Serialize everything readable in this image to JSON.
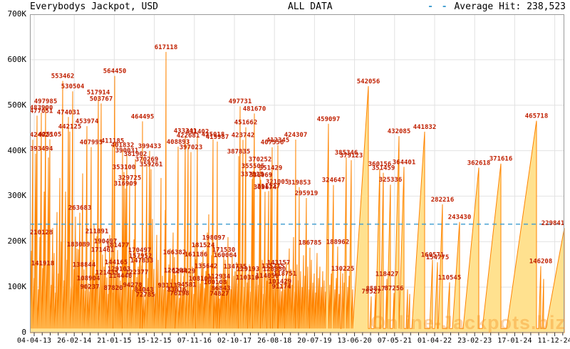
{
  "header": {
    "title": "Everybodys Jackpot, USD",
    "mode": "ALL DATA",
    "legend_dash": "- -",
    "average_label": "Average Hit: 238,523"
  },
  "watermark": "Online-Jackpots.biz",
  "colors": {
    "spike": "#ff8400",
    "fill": "#ffe18f",
    "label": "#c02000",
    "average_line": "#3e9cd0",
    "grid": "#e2e2e2",
    "border": "#9a9a9a",
    "tick": "#333333"
  },
  "chart_data": {
    "type": "area",
    "title": "Everybodys Jackpot, USD",
    "unit": "USD",
    "ylim": [
      0,
      700000
    ],
    "y_ticks": [
      "0",
      "100K",
      "200K",
      "300K",
      "400K",
      "500K",
      "600K",
      "700K"
    ],
    "x_ticks": [
      "04-04-13",
      "26-02-14",
      "21-01-15",
      "15-12-15",
      "07-11-16",
      "02-10-17",
      "26-08-18",
      "20-07-19",
      "13-06-20",
      "07-05-21",
      "01-04-22",
      "23-02-23",
      "17-01-24",
      "11-12-24"
    ],
    "average_hit": 238523,
    "x_scale": [
      0,
      750
    ],
    "peaks": [
      [
        2,
        180000,
        0
      ],
      [
        4,
        424025,
        1
      ],
      [
        6,
        120000,
        0
      ],
      [
        8,
        393494,
        1
      ],
      [
        10,
        477051,
        1
      ],
      [
        12,
        95000,
        0
      ],
      [
        14,
        210128,
        1
      ],
      [
        16,
        483900,
        1
      ],
      [
        18,
        141918,
        1
      ],
      [
        20,
        310000,
        0
      ],
      [
        22,
        497985,
        1
      ],
      [
        24,
        150000,
        0
      ],
      [
        26,
        385000,
        0
      ],
      [
        28,
        425105,
        1
      ],
      [
        30,
        105000,
        0
      ],
      [
        32,
        230000,
        0
      ],
      [
        34,
        175000,
        0
      ],
      [
        36,
        88000,
        0
      ],
      [
        38,
        265000,
        0
      ],
      [
        40,
        130000,
        0
      ],
      [
        42,
        340000,
        0
      ],
      [
        44,
        200000,
        0
      ],
      [
        46,
        553462,
        1
      ],
      [
        48,
        115000,
        0
      ],
      [
        50,
        310000,
        0
      ],
      [
        52,
        160000,
        0
      ],
      [
        54,
        474031,
        1
      ],
      [
        56,
        442125,
        1
      ],
      [
        58,
        98000,
        0
      ],
      [
        60,
        530504,
        1
      ],
      [
        62,
        140000,
        0
      ],
      [
        64,
        255000,
        0
      ],
      [
        66,
        185000,
        0
      ],
      [
        68,
        183089,
        1
      ],
      [
        70,
        263683,
        1
      ],
      [
        72,
        120000,
        0
      ],
      [
        74,
        350000,
        0
      ],
      [
        76,
        138844,
        1
      ],
      [
        78,
        92000,
        0
      ],
      [
        80,
        453974,
        1
      ],
      [
        82,
        108904,
        1
      ],
      [
        84,
        90237,
        1
      ],
      [
        86,
        407995,
        1
      ],
      [
        88,
        160000,
        0
      ],
      [
        90,
        240000,
        0
      ],
      [
        92,
        130000,
        0
      ],
      [
        94,
        211891,
        1
      ],
      [
        96,
        517914,
        1
      ],
      [
        98,
        100000,
        0
      ],
      [
        100,
        503767,
        1
      ],
      [
        102,
        171461,
        1
      ],
      [
        104,
        145000,
        0
      ],
      [
        106,
        190497,
        1
      ],
      [
        108,
        121435,
        1
      ],
      [
        110,
        85000,
        0
      ],
      [
        112,
        215000,
        0
      ],
      [
        114,
        165000,
        0
      ],
      [
        116,
        411185,
        1
      ],
      [
        117,
        87820,
        1
      ],
      [
        119,
        564450,
        1
      ],
      [
        121,
        144165,
        1
      ],
      [
        123,
        181477,
        1
      ],
      [
        125,
        129103,
        1
      ],
      [
        127,
        114446,
        1
      ],
      [
        129,
        95000,
        0
      ],
      [
        130,
        401832,
        1
      ],
      [
        132,
        353100,
        1
      ],
      [
        134,
        316909,
        1
      ],
      [
        136,
        390031,
        1
      ],
      [
        138,
        110000,
        0
      ],
      [
        140,
        329725,
        1
      ],
      [
        142,
        135000,
        0
      ],
      [
        144,
        94278,
        1
      ],
      [
        146,
        205000,
        0
      ],
      [
        148,
        381902,
        1
      ],
      [
        150,
        122377,
        1
      ],
      [
        152,
        145000,
        0
      ],
      [
        154,
        170497,
        1
      ],
      [
        155,
        157952,
        1
      ],
      [
        157,
        147833,
        1
      ],
      [
        158,
        464495,
        1
      ],
      [
        160,
        84043,
        1
      ],
      [
        162,
        72785,
        1
      ],
      [
        164,
        370269,
        1
      ],
      [
        166,
        120000,
        0
      ],
      [
        168,
        399433,
        1
      ],
      [
        170,
        359261,
        1
      ],
      [
        172,
        250000,
        0
      ],
      [
        174,
        140000,
        0
      ],
      [
        176,
        86000,
        0
      ],
      [
        178,
        215000,
        0
      ],
      [
        180,
        160000,
        0
      ],
      [
        182,
        110000,
        0
      ],
      [
        184,
        340000,
        0
      ],
      [
        186,
        125000,
        0
      ],
      [
        188,
        95000,
        0
      ],
      [
        190,
        270000,
        0
      ],
      [
        191,
        617118,
        1
      ],
      [
        193,
        93113,
        1
      ],
      [
        195,
        150000,
        0
      ],
      [
        197,
        185000,
        0
      ],
      [
        199,
        118000,
        0
      ],
      [
        201,
        220000,
        0
      ],
      [
        203,
        166382,
        1
      ],
      [
        204,
        126288,
        1
      ],
      [
        206,
        83616,
        1
      ],
      [
        208,
        408893,
        1
      ],
      [
        210,
        76198,
        1
      ],
      [
        212,
        135000,
        0
      ],
      [
        214,
        100000,
        0
      ],
      [
        216,
        124429,
        1
      ],
      [
        218,
        433341,
        1
      ],
      [
        220,
        94581,
        1
      ],
      [
        222,
        422681,
        1
      ],
      [
        224,
        110000,
        0
      ],
      [
        226,
        397023,
        1
      ],
      [
        228,
        145000,
        0
      ],
      [
        230,
        85000,
        0
      ],
      [
        232,
        195000,
        0
      ],
      [
        233,
        161186,
        1
      ],
      [
        235,
        431402,
        1
      ],
      [
        237,
        125000,
        0
      ],
      [
        239,
        108108,
        1
      ],
      [
        241,
        155000,
        0
      ],
      [
        243,
        181524,
        1
      ],
      [
        245,
        98000,
        0
      ],
      [
        247,
        135642,
        1
      ],
      [
        249,
        220000,
        0
      ],
      [
        251,
        260000,
        0
      ],
      [
        253,
        105000,
        0
      ],
      [
        255,
        170000,
        0
      ],
      [
        257,
        425018,
        1
      ],
      [
        258,
        198097,
        1
      ],
      [
        260,
        100108,
        1
      ],
      [
        262,
        90000,
        0
      ],
      [
        263,
        419987,
        1
      ],
      [
        265,
        112934,
        1
      ],
      [
        266,
        74827,
        1
      ],
      [
        268,
        86843,
        1
      ],
      [
        270,
        130000,
        0
      ],
      [
        272,
        171530,
        1
      ],
      [
        274,
        160064,
        1
      ],
      [
        276,
        115000,
        0
      ],
      [
        278,
        210000,
        0
      ],
      [
        280,
        145000,
        0
      ],
      [
        282,
        95000,
        0
      ],
      [
        284,
        175000,
        0
      ],
      [
        286,
        125000,
        0
      ],
      [
        288,
        134735,
        1
      ],
      [
        290,
        155000,
        0
      ],
      [
        292,
        108000,
        0
      ],
      [
        293,
        387835,
        1
      ],
      [
        295,
        497731,
        1
      ],
      [
        297,
        130000,
        0
      ],
      [
        299,
        423742,
        1
      ],
      [
        301,
        100000,
        0
      ],
      [
        303,
        451662,
        1
      ],
      [
        305,
        110310,
        1
      ],
      [
        306,
        129193,
        1
      ],
      [
        308,
        150000,
        0
      ],
      [
        310,
        90000,
        0
      ],
      [
        312,
        337815,
        1
      ],
      [
        313,
        355505,
        1
      ],
      [
        315,
        481670,
        1
      ],
      [
        317,
        120000,
        0
      ],
      [
        319,
        140000,
        0
      ],
      [
        321,
        105000,
        0
      ],
      [
        323,
        370252,
        1
      ],
      [
        324,
        336069,
        1
      ],
      [
        326,
        160000,
        0
      ],
      [
        328,
        85000,
        0
      ],
      [
        330,
        309674,
        1
      ],
      [
        332,
        125000,
        0
      ],
      [
        333,
        114056,
        1
      ],
      [
        335,
        311127,
        1
      ],
      [
        337,
        145000,
        0
      ],
      [
        338,
        351429,
        1
      ],
      [
        340,
        407556,
        1
      ],
      [
        341,
        135715,
        1
      ],
      [
        343,
        128880,
        1
      ],
      [
        345,
        110000,
        0
      ],
      [
        347,
        321005,
        1
      ],
      [
        348,
        412345,
        1
      ],
      [
        349,
        143157,
        1
      ],
      [
        351,
        101429,
        1
      ],
      [
        353,
        91174,
        1
      ],
      [
        355,
        130000,
        0
      ],
      [
        357,
        95000,
        0
      ],
      [
        358,
        118751,
        1
      ],
      [
        360,
        155000,
        0
      ],
      [
        362,
        120000,
        0
      ],
      [
        364,
        185000,
        0
      ],
      [
        366,
        140000,
        0
      ],
      [
        368,
        105000,
        0
      ],
      [
        370,
        210000,
        0
      ],
      [
        372,
        90000,
        0
      ],
      [
        373,
        424307,
        1
      ],
      [
        375,
        150000,
        0
      ],
      [
        377,
        115000,
        0
      ],
      [
        378,
        319853,
        1
      ],
      [
        380,
        135000,
        0
      ],
      [
        382,
        100000,
        0
      ],
      [
        384,
        170000,
        0
      ],
      [
        386,
        125000,
        0
      ],
      [
        388,
        295919,
        1
      ],
      [
        390,
        145000,
        0
      ],
      [
        392,
        95000,
        0
      ],
      [
        393,
        186785,
        1
      ],
      [
        395,
        160000,
        0
      ],
      [
        397,
        110000,
        0
      ],
      [
        399,
        130000,
        0
      ],
      [
        401,
        88000,
        0
      ],
      [
        403,
        175000,
        0
      ],
      [
        405,
        120000,
        0
      ],
      [
        407,
        145000,
        0
      ],
      [
        409,
        100000,
        0
      ],
      [
        411,
        135000,
        0
      ],
      [
        413,
        115000,
        0
      ],
      [
        415,
        90000,
        0
      ],
      [
        419,
        459097,
        1,
        12
      ],
      [
        421,
        105000,
        0
      ],
      [
        423,
        130000,
        0
      ],
      [
        426,
        324647,
        1,
        4
      ],
      [
        428,
        95000,
        0
      ],
      [
        430,
        120000,
        0
      ],
      [
        432,
        188962,
        1
      ],
      [
        434,
        85000,
        0
      ],
      [
        436,
        140000,
        0
      ],
      [
        439,
        130225,
        1
      ],
      [
        441,
        110000,
        0
      ],
      [
        444,
        385346,
        1,
        5
      ],
      [
        446,
        100000,
        0
      ],
      [
        448,
        125000,
        0
      ],
      [
        451,
        379123,
        1,
        5
      ],
      [
        453,
        95000,
        0
      ],
      [
        475,
        542056,
        1,
        22
      ],
      [
        479,
        79527,
        1
      ],
      [
        485,
        85817,
        1
      ],
      [
        491,
        360156,
        1,
        6
      ],
      [
        496,
        351459,
        1,
        4
      ],
      [
        501,
        118427,
        1
      ],
      [
        506,
        325336,
        1,
        5
      ],
      [
        511,
        87256,
        1
      ],
      [
        518,
        432085,
        1,
        8
      ],
      [
        525,
        364401,
        1,
        7
      ],
      [
        530,
        95000,
        0
      ],
      [
        533,
        85000,
        0
      ],
      [
        554,
        441832,
        1,
        18
      ],
      [
        565,
        160571,
        1,
        4
      ],
      [
        572,
        154775,
        1,
        4
      ],
      [
        579,
        282216,
        1,
        6
      ],
      [
        589,
        110545,
        1,
        4
      ],
      [
        603,
        243430,
        1,
        10
      ],
      [
        630,
        362618,
        1,
        22
      ],
      [
        661,
        371616,
        1,
        26
      ],
      [
        711,
        465718,
        1,
        42
      ],
      [
        717,
        146208,
        1,
        3
      ],
      [
        721,
        118000,
        0
      ]
    ],
    "final_segment": {
      "x": 750,
      "v": 229841,
      "w": 26,
      "labeled": 1
    }
  }
}
